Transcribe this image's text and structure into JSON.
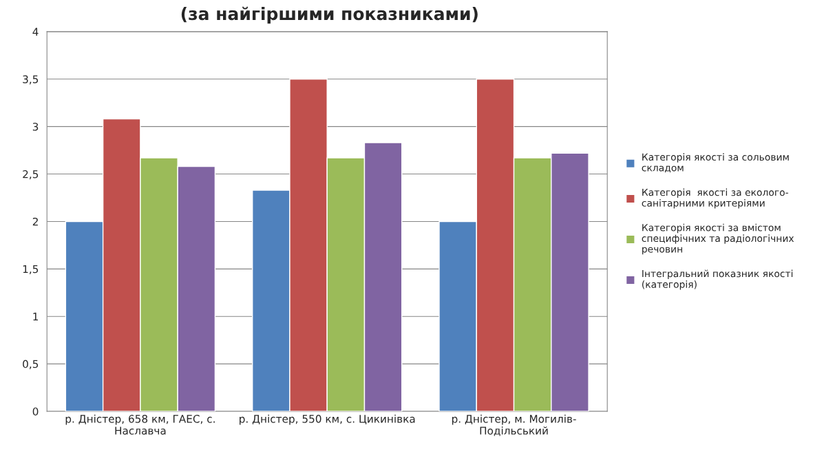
{
  "chart_data": {
    "type": "bar",
    "title": "(за найгіршими показниками)",
    "categories": [
      "р. Дністер, 658 км, ГАЕС, с.\nНаславча",
      "р. Дністер, 550 км, с. Цикинівка",
      "р. Дністер, м. Могилів-\nПодільський"
    ],
    "series": [
      {
        "name": "Категорія якості за сольовим\nскладом",
        "color": "#4f81bd",
        "values": [
          2.0,
          2.33,
          2.0
        ]
      },
      {
        "name": "Категорія  якості за еколого-\nсанітарними критеріями",
        "color": "#c0504d",
        "values": [
          3.08,
          3.5,
          3.5
        ]
      },
      {
        "name": "Категорія якості за вмістом\nспецифічних та радіологічних\nречовин",
        "color": "#9bbb59",
        "values": [
          2.67,
          2.67,
          2.67
        ]
      },
      {
        "name": "Інтегральний показник якості\n(категорія)",
        "color": "#8064a2",
        "values": [
          2.58,
          2.83,
          2.72
        ]
      }
    ],
    "ylim": [
      0,
      4
    ],
    "yticks": [
      0,
      {
        "value": 0.5,
        "label": "0,5"
      },
      1,
      {
        "value": 1.5,
        "label": "1,5"
      },
      2,
      {
        "value": 2.5,
        "label": "2,5"
      },
      3,
      {
        "value": 3.5,
        "label": "3,5"
      },
      4
    ],
    "grid": "y",
    "legend": "right"
  }
}
